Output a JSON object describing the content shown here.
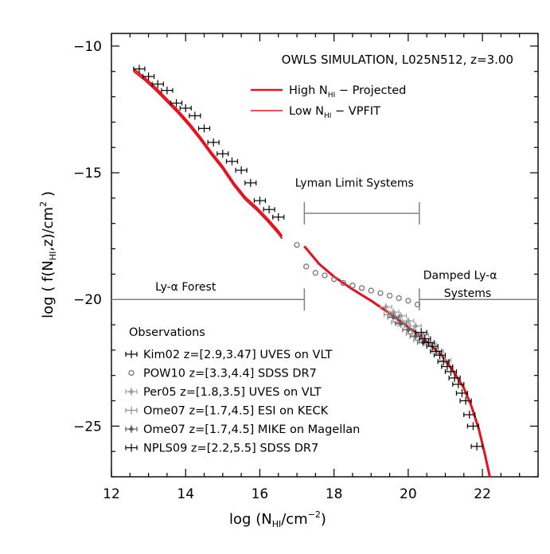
{
  "chart_data": {
    "type": "scatter",
    "title": "OWLS SIMULATION, L025N512, z=3.00",
    "xlabel": "log (N_HI/cm^-2)",
    "ylabel": "log ( f(N_HI,z)/cm^2 )",
    "xlim": [
      12,
      23.5
    ],
    "ylim": [
      -27,
      -9.5
    ],
    "x_ticks": [
      "12",
      "14",
      "16",
      "18",
      "20",
      "22"
    ],
    "y_ticks": [
      "-10",
      "-15",
      "-20",
      "-25"
    ],
    "y_tick_values": [
      -10,
      -15,
      -20,
      -25
    ],
    "x_tick_values": [
      12,
      14,
      16,
      18,
      20,
      22
    ],
    "lines": [
      {
        "name": "High N_HI - Projected",
        "color": "#e8101a",
        "x": [
          17.2,
          17.6,
          18.0,
          18.5,
          19.0,
          19.5,
          20.0,
          20.3,
          20.6,
          20.9,
          21.2,
          21.5,
          21.7,
          21.9,
          22.05,
          22.2
        ],
        "y": [
          -17.9,
          -18.6,
          -19.1,
          -19.6,
          -20.05,
          -20.55,
          -21.1,
          -21.4,
          -21.8,
          -22.2,
          -22.8,
          -23.5,
          -24.2,
          -25.1,
          -26.0,
          -27.0
        ]
      },
      {
        "name": "Low N_HI - VPFIT",
        "color": "#e8101a",
        "x": [
          12.6,
          12.9,
          13.2,
          13.5,
          13.8,
          14.1,
          14.4,
          14.7,
          15.0,
          15.3,
          15.6,
          15.9,
          16.2,
          16.5,
          16.6
        ],
        "y": [
          -10.9,
          -11.25,
          -11.65,
          -12.1,
          -12.55,
          -13.05,
          -13.6,
          -14.2,
          -14.75,
          -15.4,
          -15.95,
          -16.35,
          -16.8,
          -17.3,
          -17.5
        ]
      }
    ],
    "series": [
      {
        "name": "Kim02",
        "label": "Kim02 z=[2.9,3.47] UVES on VLT",
        "marker": "errorbar",
        "color": "#000000",
        "x": [
          12.75,
          13.0,
          13.25,
          13.5,
          13.75,
          14.0,
          14.25,
          14.5,
          14.75,
          15.0,
          15.25,
          15.5,
          15.75,
          16.0,
          16.25,
          16.5
        ],
        "y": [
          -10.9,
          -11.2,
          -11.5,
          -11.75,
          -12.25,
          -12.45,
          -12.75,
          -13.25,
          -13.8,
          -14.25,
          -14.55,
          -14.9,
          -15.4,
          -16.1,
          -16.45,
          -16.75
        ]
      },
      {
        "name": "POW10",
        "label": "POW10 z=[3.3,4.4] SDSS DR7",
        "marker": "circle",
        "color": "#777777",
        "x": [
          17.0,
          17.25,
          17.5,
          17.75,
          18.0,
          18.25,
          18.5,
          18.75,
          19.0,
          19.25,
          19.5,
          19.75,
          20.0,
          20.25
        ],
        "y": [
          -17.85,
          -18.7,
          -18.95,
          -19.05,
          -19.2,
          -19.35,
          -19.45,
          -19.55,
          -19.65,
          -19.75,
          -19.85,
          -19.95,
          -20.05,
          -20.2
        ]
      },
      {
        "name": "Per05",
        "label": "Per05 z=[1.8,3.5] UVES on VLT",
        "marker": "diamond-errorbar",
        "color": "#a0a0a0",
        "x": [
          19.4,
          19.6,
          19.8,
          20.0,
          20.2,
          20.4,
          20.6,
          20.8,
          21.0
        ],
        "y": [
          -20.3,
          -20.5,
          -20.65,
          -20.85,
          -21.05,
          -21.4,
          -21.75,
          -22.05,
          -22.4
        ]
      },
      {
        "name": "Ome07 ESI",
        "label": "Ome07 z=[1.7,4.5] ESI on KECK",
        "marker": "errorbar",
        "color": "#909090",
        "x": [
          19.5,
          19.7,
          19.9,
          20.1,
          20.3
        ],
        "y": [
          -20.6,
          -20.9,
          -21.0,
          -21.35,
          -21.6
        ]
      },
      {
        "name": "Ome07 MIKE",
        "label": "Ome07 z=[1.7,4.5] MIKE on Magellan",
        "marker": "diamond-errorbar",
        "color": "#606060",
        "x": [
          19.6,
          19.8,
          20.0,
          20.2,
          20.4
        ],
        "y": [
          -20.7,
          -20.95,
          -21.2,
          -21.45,
          -21.7
        ]
      },
      {
        "name": "NPLS09",
        "label": "NPLS09 z=[2.2,5.5] SDSS DR7",
        "marker": "errorbar",
        "color": "#000000",
        "x": [
          20.35,
          20.45,
          20.55,
          20.65,
          20.75,
          20.85,
          20.95,
          21.05,
          21.15,
          21.25,
          21.35,
          21.45,
          21.55,
          21.65,
          21.75,
          21.85
        ],
        "y": [
          -21.3,
          -21.55,
          -21.7,
          -21.85,
          -22.05,
          -22.2,
          -22.45,
          -22.65,
          -22.85,
          -23.1,
          -23.35,
          -23.7,
          -24.0,
          -24.55,
          -25.0,
          -25.8
        ]
      }
    ],
    "annotations": [
      {
        "text": "Lyman Limit Systems",
        "x": 18.55,
        "y": -15.55
      },
      {
        "text": "Ly-α Forest",
        "x": 14.0,
        "y": -19.65
      },
      {
        "text": "Damped Ly-α",
        "x": 21.4,
        "y": -19.2
      },
      {
        "text": "Systems",
        "x": 21.6,
        "y": -19.9
      }
    ],
    "brackets": [
      {
        "name": "lls",
        "x1": 17.2,
        "x2": 20.3,
        "y": -16.6
      },
      {
        "name": "forest",
        "x1": 12.0,
        "x2": 17.2,
        "y": -20.0
      },
      {
        "name": "dla",
        "x1": 20.3,
        "x2": 23.5,
        "y": -20.0
      }
    ],
    "legend_title": "Observations",
    "legend_position": "bottom-left",
    "lines_legend_position": "top-right"
  }
}
